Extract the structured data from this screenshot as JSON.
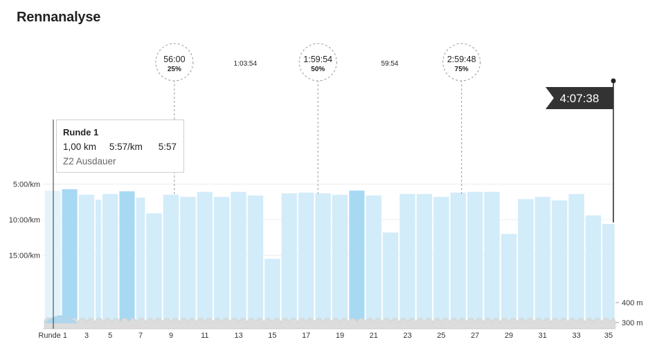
{
  "page": {
    "title": "Rennanalyse"
  },
  "tooltip": {
    "title": "Runde 1",
    "distance": "1,00 km",
    "pace": "5:57/km",
    "time": "5:57",
    "zone": "Z2 Ausdauer"
  },
  "finish": {
    "label": "4:07:38"
  },
  "chart_data": {
    "type": "bar",
    "ylabel_ticks": [
      "5:00/km",
      "10:00/km",
      "15:00/km"
    ],
    "elevation_ticks": [
      "400 m",
      "300 m"
    ],
    "x_tick_labels": [
      {
        "lap": 1,
        "label": "Runde 1"
      },
      {
        "lap": 3,
        "label": "3"
      },
      {
        "lap": 5,
        "label": "5"
      },
      {
        "lap": 7,
        "label": "7"
      },
      {
        "lap": 9,
        "label": "9"
      },
      {
        "lap": 11,
        "label": "11"
      },
      {
        "lap": 13,
        "label": "13"
      },
      {
        "lap": 15,
        "label": "15"
      },
      {
        "lap": 17,
        "label": "17"
      },
      {
        "lap": 19,
        "label": "19"
      },
      {
        "lap": 21,
        "label": "21"
      },
      {
        "lap": 23,
        "label": "23"
      },
      {
        "lap": 25,
        "label": "25"
      },
      {
        "lap": 27,
        "label": "27"
      },
      {
        "lap": 29,
        "label": "29"
      },
      {
        "lap": 31,
        "label": "31"
      },
      {
        "lap": 33,
        "label": "33"
      },
      {
        "lap": 35,
        "label": "35"
      }
    ],
    "pace_axis_ticks_min_per_km": [
      5,
      10,
      15
    ],
    "laps": [
      {
        "lap": 1,
        "pace": 5.95,
        "dist": 1.0
      },
      {
        "lap": 2,
        "pace": 5.7,
        "dist": 1.0
      },
      {
        "lap": 3,
        "pace": 6.5,
        "dist": 1.0
      },
      {
        "lap": 4,
        "pace": 7.2,
        "dist": 0.4
      },
      {
        "lap": 5,
        "pace": 6.4,
        "dist": 1.0
      },
      {
        "lap": 6,
        "pace": 6.0,
        "dist": 1.0
      },
      {
        "lap": 7,
        "pace": 6.9,
        "dist": 0.6
      },
      {
        "lap": 8,
        "pace": 9.1,
        "dist": 1.0
      },
      {
        "lap": 9,
        "pace": 6.5,
        "dist": 1.0
      },
      {
        "lap": 10,
        "pace": 6.8,
        "dist": 1.0
      },
      {
        "lap": 11,
        "pace": 6.1,
        "dist": 1.0
      },
      {
        "lap": 12,
        "pace": 6.8,
        "dist": 1.0
      },
      {
        "lap": 13,
        "pace": 6.1,
        "dist": 1.0
      },
      {
        "lap": 14,
        "pace": 6.6,
        "dist": 1.0
      },
      {
        "lap": 15,
        "pace": 15.5,
        "dist": 1.0
      },
      {
        "lap": 16,
        "pace": 6.3,
        "dist": 1.0
      },
      {
        "lap": 17,
        "pace": 6.2,
        "dist": 1.0
      },
      {
        "lap": 18,
        "pace": 6.3,
        "dist": 1.0
      },
      {
        "lap": 19,
        "pace": 6.5,
        "dist": 1.0
      },
      {
        "lap": 20,
        "pace": 5.9,
        "dist": 1.0
      },
      {
        "lap": 21,
        "pace": 6.6,
        "dist": 1.0
      },
      {
        "lap": 22,
        "pace": 11.8,
        "dist": 1.0
      },
      {
        "lap": 23,
        "pace": 6.4,
        "dist": 1.0
      },
      {
        "lap": 24,
        "pace": 6.4,
        "dist": 1.0
      },
      {
        "lap": 25,
        "pace": 6.8,
        "dist": 1.0
      },
      {
        "lap": 26,
        "pace": 6.2,
        "dist": 1.0
      },
      {
        "lap": 27,
        "pace": 6.1,
        "dist": 1.0
      },
      {
        "lap": 28,
        "pace": 6.1,
        "dist": 1.0
      },
      {
        "lap": 29,
        "pace": 12.0,
        "dist": 1.0
      },
      {
        "lap": 30,
        "pace": 7.1,
        "dist": 1.0
      },
      {
        "lap": 31,
        "pace": 6.8,
        "dist": 1.0
      },
      {
        "lap": 32,
        "pace": 7.3,
        "dist": 1.0
      },
      {
        "lap": 33,
        "pace": 6.4,
        "dist": 1.0
      },
      {
        "lap": 34,
        "pace": 9.4,
        "dist": 1.0
      },
      {
        "lap": 35,
        "pace": 10.6,
        "dist": 0.8
      }
    ],
    "highlighted_laps": [
      2,
      6,
      20
    ],
    "markers": [
      {
        "time": "56:00",
        "percent": "25%",
        "lap_position": 9.2
      },
      {
        "time": "1:59:54",
        "percent": "50%",
        "lap_position": 17.7
      },
      {
        "time": "2:59:48",
        "percent": "75%",
        "lap_position": 26.2
      }
    ],
    "split_labels": [
      {
        "label": "1:03:54",
        "lap_position": 13.4
      },
      {
        "label": "59:54",
        "lap_position": 21.95
      }
    ],
    "colors": {
      "bar": "#d2ecf9",
      "bar_highlight": "#a8d9f3",
      "bar_first": "#e3f3fc",
      "elevation_fill": "#dcdcdc",
      "finish_flag": "#333333"
    }
  }
}
